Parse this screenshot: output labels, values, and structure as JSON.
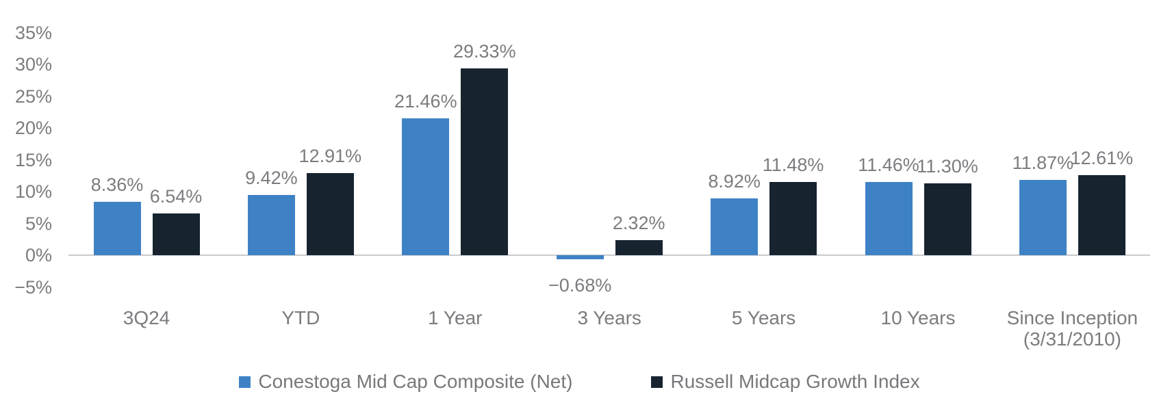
{
  "chart_data": {
    "type": "bar",
    "title": "",
    "xlabel": "",
    "ylabel": "",
    "categories": [
      "3Q24",
      "YTD",
      "1 Year",
      "3 Years",
      "5 Years",
      "10 Years",
      "Since Inception\n(3/31/2010)"
    ],
    "series": [
      {
        "name": "Conestoga Mid Cap Composite (Net)",
        "color": "#3e82c5",
        "values": [
          8.36,
          9.42,
          21.46,
          -0.68,
          8.92,
          11.46,
          11.87
        ],
        "labels": [
          "8.36%",
          "9.42%",
          "21.46%",
          "−0.68%",
          "8.92%",
          "11.46%",
          "11.87%"
        ]
      },
      {
        "name": "Russell Midcap Growth Index",
        "color": "#172430",
        "values": [
          6.54,
          12.91,
          29.33,
          2.32,
          11.48,
          11.3,
          12.61
        ],
        "labels": [
          "6.54%",
          "12.91%",
          "29.33%",
          "2.32%",
          "11.48%",
          "11.30%",
          "12.61%"
        ]
      }
    ],
    "y_axis": {
      "unit": "%",
      "range": [
        -5,
        35
      ],
      "tick_step": 5,
      "ticks": [
        {
          "label": "35%",
          "value": 35
        },
        {
          "label": "30%",
          "value": 30
        },
        {
          "label": "25%",
          "value": 25
        },
        {
          "label": "20%",
          "value": 20
        },
        {
          "label": "15%",
          "value": 15
        },
        {
          "label": "10%",
          "value": 10
        },
        {
          "label": "5%",
          "value": 5
        },
        {
          "label": "0%",
          "value": 0
        },
        {
          "label": "−5%",
          "value": -5
        }
      ]
    },
    "grid": false,
    "legend_position": "bottom",
    "colors": {
      "composite_blue": "#3e82c5",
      "index_navy": "#172430",
      "text_gray": "#7c7c80",
      "axis_line_gray": "#c9cacc",
      "background": "#ffffff"
    }
  }
}
